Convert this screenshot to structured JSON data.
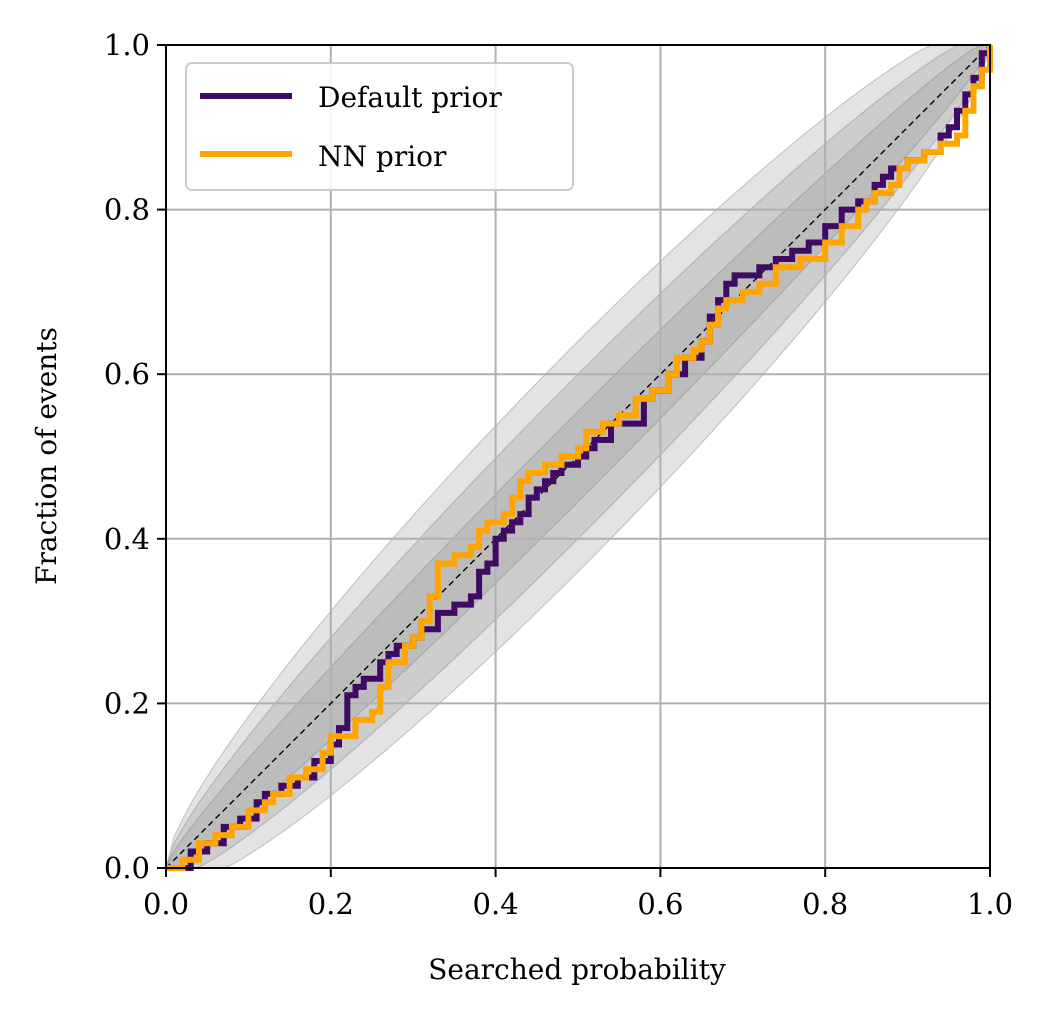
{
  "chart_data": {
    "type": "line",
    "title": "",
    "xlabel": "Searched probability",
    "ylabel": "Fraction of events",
    "xlim": [
      0,
      1
    ],
    "ylim": [
      0,
      1
    ],
    "xticks": [
      0.0,
      0.2,
      0.4,
      0.6,
      0.8,
      1.0
    ],
    "yticks": [
      0.0,
      0.2,
      0.4,
      0.6,
      0.8,
      1.0
    ],
    "xtick_labels": [
      "0.0",
      "0.2",
      "0.4",
      "0.6",
      "0.8",
      "1.0"
    ],
    "ytick_labels": [
      "0.0",
      "0.2",
      "0.4",
      "0.6",
      "0.8",
      "1.0"
    ],
    "grid": true,
    "legend_position": "top-left",
    "confidence_bands": {
      "description": "nested binomial credible regions around the diagonal",
      "half_widths_at_center": [
        0.055,
        0.1,
        0.14
      ],
      "color": "#808080"
    },
    "reference_line": {
      "name": "diagonal",
      "x": [
        0,
        1
      ],
      "y": [
        0,
        1
      ],
      "style": "dashed",
      "color": "#000000"
    },
    "series": [
      {
        "name": "Default prior",
        "color": "#3f0a64",
        "step": true,
        "x": [
          0.0,
          0.03,
          0.05,
          0.07,
          0.09,
          0.11,
          0.12,
          0.14,
          0.16,
          0.18,
          0.2,
          0.21,
          0.22,
          0.23,
          0.24,
          0.26,
          0.27,
          0.28,
          0.3,
          0.31,
          0.33,
          0.35,
          0.37,
          0.38,
          0.39,
          0.4,
          0.41,
          0.42,
          0.43,
          0.44,
          0.45,
          0.46,
          0.47,
          0.48,
          0.5,
          0.51,
          0.52,
          0.54,
          0.56,
          0.58,
          0.59,
          0.61,
          0.63,
          0.65,
          0.66,
          0.67,
          0.68,
          0.69,
          0.72,
          0.74,
          0.76,
          0.78,
          0.8,
          0.82,
          0.84,
          0.86,
          0.87,
          0.88,
          0.9,
          0.92,
          0.94,
          0.95,
          0.96,
          0.97,
          0.98,
          0.99,
          1.0
        ],
        "y": [
          0.0,
          0.02,
          0.03,
          0.05,
          0.06,
          0.08,
          0.09,
          0.1,
          0.11,
          0.13,
          0.15,
          0.17,
          0.21,
          0.22,
          0.23,
          0.25,
          0.26,
          0.27,
          0.28,
          0.29,
          0.31,
          0.32,
          0.33,
          0.36,
          0.37,
          0.4,
          0.41,
          0.42,
          0.43,
          0.45,
          0.46,
          0.47,
          0.48,
          0.49,
          0.5,
          0.51,
          0.52,
          0.54,
          0.54,
          0.57,
          0.58,
          0.6,
          0.62,
          0.64,
          0.67,
          0.69,
          0.71,
          0.72,
          0.73,
          0.74,
          0.75,
          0.76,
          0.78,
          0.8,
          0.81,
          0.83,
          0.84,
          0.85,
          0.86,
          0.87,
          0.89,
          0.9,
          0.92,
          0.94,
          0.96,
          0.99,
          1.0
        ]
      },
      {
        "name": "NN prior",
        "color": "#ffa500",
        "step": true,
        "x": [
          0.0,
          0.02,
          0.04,
          0.06,
          0.08,
          0.1,
          0.12,
          0.13,
          0.15,
          0.17,
          0.19,
          0.2,
          0.23,
          0.25,
          0.26,
          0.27,
          0.29,
          0.3,
          0.31,
          0.32,
          0.33,
          0.35,
          0.37,
          0.38,
          0.39,
          0.41,
          0.42,
          0.43,
          0.44,
          0.46,
          0.48,
          0.5,
          0.51,
          0.53,
          0.55,
          0.57,
          0.59,
          0.61,
          0.62,
          0.64,
          0.65,
          0.66,
          0.67,
          0.68,
          0.7,
          0.72,
          0.74,
          0.77,
          0.8,
          0.82,
          0.84,
          0.85,
          0.86,
          0.88,
          0.89,
          0.9,
          0.92,
          0.94,
          0.96,
          0.97,
          0.98,
          0.99,
          1.0
        ],
        "y": [
          0.0,
          0.01,
          0.03,
          0.04,
          0.05,
          0.07,
          0.08,
          0.09,
          0.11,
          0.12,
          0.14,
          0.16,
          0.18,
          0.19,
          0.22,
          0.25,
          0.27,
          0.28,
          0.3,
          0.33,
          0.37,
          0.38,
          0.39,
          0.41,
          0.42,
          0.43,
          0.45,
          0.47,
          0.48,
          0.49,
          0.5,
          0.51,
          0.53,
          0.54,
          0.55,
          0.57,
          0.58,
          0.6,
          0.62,
          0.63,
          0.64,
          0.66,
          0.68,
          0.69,
          0.7,
          0.71,
          0.73,
          0.74,
          0.76,
          0.78,
          0.8,
          0.81,
          0.82,
          0.83,
          0.85,
          0.86,
          0.87,
          0.88,
          0.89,
          0.92,
          0.95,
          0.97,
          1.0
        ]
      }
    ]
  }
}
